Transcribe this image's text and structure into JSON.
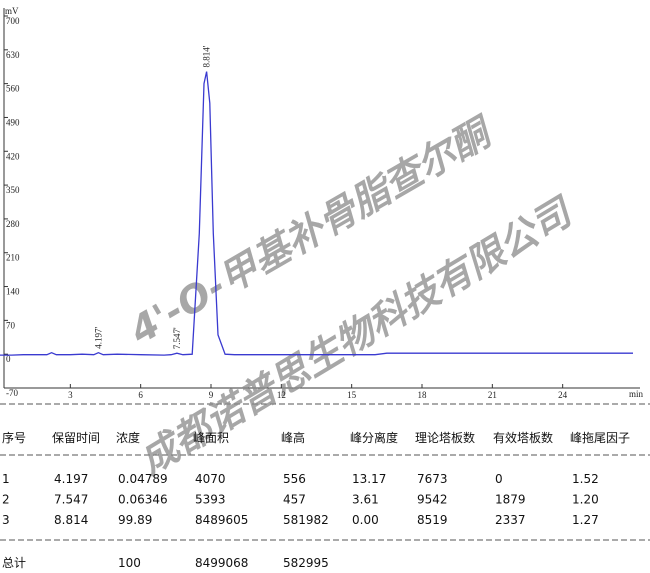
{
  "chart_data": {
    "type": "line",
    "y_unit": "mV",
    "x_unit": "min",
    "xlim": [
      0,
      27
    ],
    "xticks": [
      3,
      6,
      9,
      12,
      15,
      18,
      21,
      24
    ],
    "ylim": [
      -70,
      700
    ],
    "yticks": [
      -70,
      0,
      70,
      140,
      210,
      280,
      350,
      420,
      490,
      560,
      630,
      700
    ],
    "series": [
      {
        "color": "#3a3ad0",
        "x": [
          0,
          0.3,
          0.5,
          1.0,
          1.5,
          2.0,
          2.2,
          2.4,
          2.6,
          3.0,
          3.5,
          4.0,
          4.197,
          4.4,
          5,
          6,
          7,
          7.3,
          7.547,
          7.8,
          8.2,
          8.5,
          8.7,
          8.814,
          8.95,
          9.1,
          9.3,
          9.6,
          10,
          12,
          15,
          16,
          16.5,
          20,
          24,
          27
        ],
        "values": [
          -2,
          -2,
          -2,
          -1,
          -1,
          -1,
          3,
          -1,
          -1,
          -1,
          0,
          -1,
          3,
          -1,
          0,
          -1,
          -2,
          -1,
          2,
          -1,
          0,
          250,
          560,
          585,
          520,
          250,
          40,
          0,
          -1,
          -1,
          -1,
          -1,
          2,
          2,
          2,
          2
        ]
      }
    ],
    "peak_labels": [
      {
        "value": 4.197,
        "label": "4.197'"
      },
      {
        "value": 7.547,
        "label": "7.547'"
      },
      {
        "value": 8.814,
        "label": "8.814'"
      }
    ]
  },
  "table": {
    "header": [
      "序号",
      "保留时间",
      "浓度",
      "峰面积",
      "峰高",
      "峰分离度",
      "理论塔板数",
      "有效塔板数",
      "峰拖尾因子"
    ],
    "rows": [
      [
        "1",
        "4.197",
        "0.04789",
        "4070",
        "556",
        "13.17",
        "7673",
        "0",
        "1.52"
      ],
      [
        "2",
        "7.547",
        "0.06346",
        "5393",
        "457",
        "3.61",
        "9542",
        "1879",
        "1.20"
      ],
      [
        "3",
        "8.814",
        "99.89",
        "8489605",
        "581982",
        "0.00",
        "8519",
        "2337",
        "1.27"
      ]
    ],
    "total": [
      "总计",
      "100",
      "8499068",
      "582995"
    ]
  },
  "watermark": [
    "4'-O-甲基补骨脂查尔酮",
    "成都诺普思生物科技有限公司"
  ]
}
